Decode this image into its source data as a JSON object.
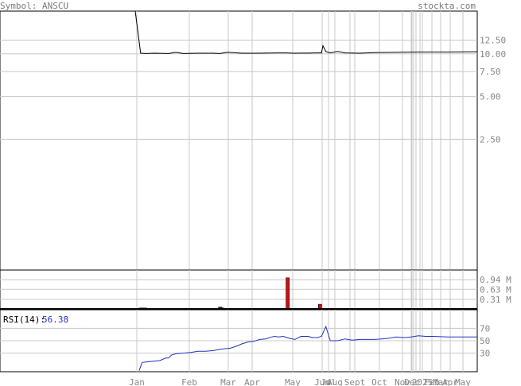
{
  "header": {
    "symbol_label": "Symbol: ANSCU",
    "site": "stockta.com"
  },
  "colors": {
    "price_line": "#000000",
    "rsi_line": "#2233bb",
    "rsi_value": "#2233bb",
    "volume_up": "#0a8a0a",
    "volume_down": "#cc1111",
    "grid": "#c8c8c8",
    "text": "#888888"
  },
  "chart_data": [
    {
      "type": "line",
      "panel": "price",
      "y_ticks": [
        "12.50",
        "10.00",
        "7.50",
        "5.00",
        "2.50"
      ],
      "y_tick_values": [
        12.5,
        10.0,
        7.5,
        5.0,
        2.5
      ],
      "scale": "log",
      "grid": true,
      "x_labels": [
        "Jan",
        "Feb",
        "Mar",
        "Apr",
        "May",
        "Jun",
        "Jul",
        "Aug",
        "Sept",
        "Oct",
        "Nov",
        "Dec",
        "2025",
        "Feb",
        "Mar",
        "Apr",
        "May"
      ],
      "series": [
        {
          "x": [
            0,
            1,
            5,
            10,
            20,
            25,
            30,
            40,
            50,
            55,
            60,
            70,
            80,
            95,
            100,
            105,
            110,
            115,
            120,
            124,
            125,
            127,
            130,
            135,
            140,
            150,
            160,
            175,
            190,
            210,
            230
          ],
          "y": [
            500,
            10.1,
            10.05,
            10.1,
            10.05,
            10.25,
            10.05,
            10.1,
            10.1,
            10.05,
            10.25,
            10.1,
            10.1,
            10.15,
            10.15,
            10.1,
            10.12,
            10.12,
            10.15,
            10.15,
            11.4,
            10.4,
            10.15,
            10.4,
            10.15,
            10.1,
            10.2,
            10.25,
            10.3,
            10.3,
            10.35
          ]
        }
      ]
    },
    {
      "type": "bar",
      "panel": "volume",
      "y_ticks": [
        "0.94 M",
        "0.63 M",
        "0.31 M"
      ],
      "y_tick_values": [
        0.94,
        0.63,
        0.31
      ],
      "ylim": [
        0,
        1.25
      ],
      "bars": [
        {
          "x": 1,
          "value": 0.03,
          "up": true
        },
        {
          "x": 2,
          "value": 0.03,
          "up": true
        },
        {
          "x": 3,
          "value": 0.03,
          "up": true
        },
        {
          "x": 4,
          "value": 0.03,
          "up": true
        },
        {
          "x": 55,
          "value": 0.06,
          "up": true
        },
        {
          "x": 56,
          "value": 0.04,
          "up": true
        },
        {
          "x": 101,
          "value": 1.0,
          "up": false
        },
        {
          "x": 123,
          "value": 0.15,
          "up": false
        }
      ]
    },
    {
      "type": "line",
      "panel": "rsi",
      "label": "RSI(14):",
      "value": "56.38",
      "y_ticks": [
        "70",
        "50",
        "30"
      ],
      "y_tick_values": [
        70,
        50,
        30
      ],
      "ylim": [
        0,
        100
      ],
      "series": [
        {
          "x": [
            0,
            2,
            6,
            10,
            14,
            18,
            20,
            22,
            25,
            30,
            35,
            40,
            45,
            50,
            55,
            58,
            62,
            66,
            70,
            74,
            78,
            82,
            86,
            90,
            92,
            95,
            98,
            102,
            106,
            110,
            115,
            118,
            121,
            124,
            127,
            130,
            135,
            140,
            145,
            150,
            155,
            160,
            165,
            170,
            175,
            180,
            185,
            190,
            195,
            200,
            210,
            220,
            230
          ],
          "y": [
            2,
            15,
            16,
            17,
            18,
            22,
            22,
            27,
            29,
            30,
            31,
            33,
            33,
            34,
            36,
            37,
            38,
            41,
            45,
            48,
            49,
            52,
            53,
            56,
            57,
            56,
            57,
            54,
            52,
            57,
            57,
            55,
            55,
            57,
            73,
            50,
            50,
            53,
            51,
            52,
            52,
            52,
            53,
            54,
            56,
            55,
            56,
            58,
            57,
            57,
            56,
            56,
            56
          ]
        }
      ]
    }
  ]
}
